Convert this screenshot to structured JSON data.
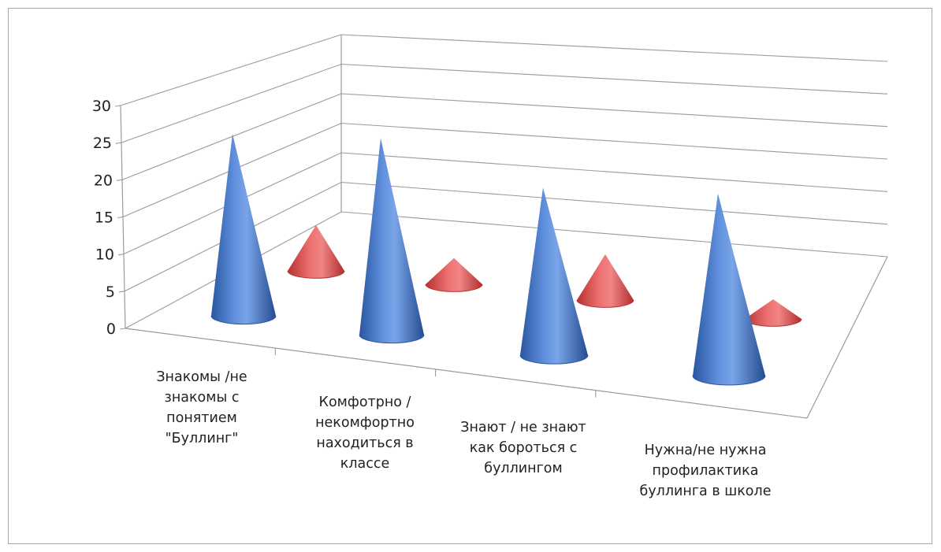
{
  "chart_data": {
    "type": "bar",
    "subtype": "3d-cone",
    "categories": [
      "Знакомы /не знакомы с понятием \"Буллинг\"",
      "Комфотрно /некомфортно находиться в классе",
      "Знают / не знают как бороться с буллингом",
      "Нужна/не нужна профилактика буллинга в школе"
    ],
    "series": [
      {
        "values": [
          25,
          27,
          23,
          25
        ],
        "color": "#3f72c4"
      },
      {
        "values": [
          7,
          4,
          7,
          3
        ],
        "color": "#d94b4b"
      }
    ],
    "yticks": [
      "0",
      "5",
      "10",
      "15",
      "20",
      "25",
      "30"
    ],
    "ylim": [
      0,
      30
    ],
    "grid": true,
    "legend": "none"
  }
}
